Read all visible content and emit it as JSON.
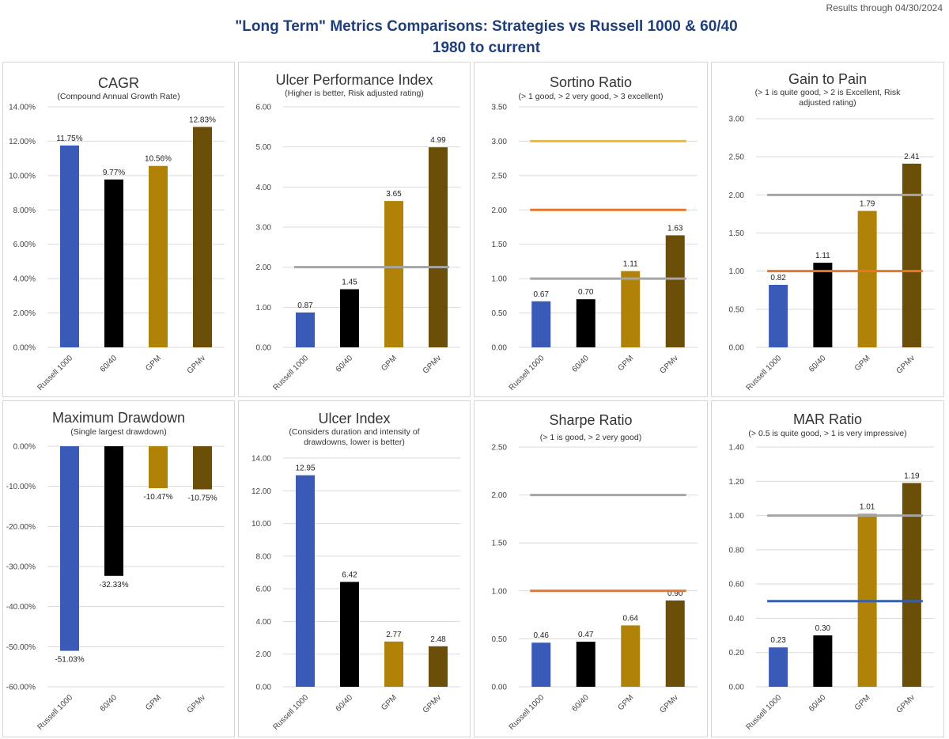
{
  "header": {
    "results_note": "Results through 04/30/2024",
    "title_line1": "\"Long Term\" Metrics Comparisons: Strategies vs Russell 1000 & 60/40",
    "title_line2": "1980 to current"
  },
  "colors": {
    "title": "#1f3e7c",
    "russell": "#3a5ab8",
    "sixty_forty": "#000000",
    "gpm": "#b08308",
    "gpmv": "#6b4e07",
    "grid": "#d9d9d9",
    "ref_gray": "#a5a5a5",
    "ref_orange": "#e4772b",
    "ref_yellow": "#f3b923",
    "ref_blue": "#3660a8"
  },
  "chart_data": [
    {
      "id": "cagr",
      "type": "bar",
      "title": "CAGR",
      "subtitle": [
        "(Compound Annual Growth Rate)"
      ],
      "categories": [
        "Russell 1000",
        "60/40",
        "GPM",
        "GPMv"
      ],
      "values": [
        11.75,
        9.77,
        10.56,
        12.83
      ],
      "data_labels": [
        "11.75%",
        "9.77%",
        "10.56%",
        "12.83%"
      ],
      "ylim": [
        0,
        14
      ],
      "ystep": 2,
      "ytick_labels": [
        "0.00%",
        "2.00%",
        "4.00%",
        "6.00%",
        "8.00%",
        "10.00%",
        "12.00%",
        "14.00%"
      ],
      "reference_lines": []
    },
    {
      "id": "upi",
      "type": "bar",
      "title": "Ulcer Performance Index",
      "subtitle": [
        "(Higher is better, Risk adjusted rating)"
      ],
      "categories": [
        "Russell 1000",
        "60/40",
        "GPM",
        "GPMv"
      ],
      "values": [
        0.87,
        1.45,
        3.65,
        4.99
      ],
      "data_labels": [
        "0.87",
        "1.45",
        "3.65",
        "4.99"
      ],
      "ylim": [
        0,
        6
      ],
      "ystep": 1,
      "ytick_labels": [
        "0.00",
        "1.00",
        "2.00",
        "3.00",
        "4.00",
        "5.00",
        "6.00"
      ],
      "reference_lines": [
        {
          "value": 2.0,
          "color": "gray"
        }
      ]
    },
    {
      "id": "sortino",
      "type": "bar",
      "title": "Sortino Ratio",
      "subtitle": [
        "(> 1 good, > 2 very good, > 3 excellent)"
      ],
      "categories": [
        "Russell 1000",
        "60/40",
        "GPM",
        "GPMv"
      ],
      "values": [
        0.67,
        0.7,
        1.11,
        1.63
      ],
      "data_labels": [
        "0.67",
        "0.70",
        "1.11",
        "1.63"
      ],
      "ylim": [
        0,
        3.5
      ],
      "ystep": 0.5,
      "ytick_labels": [
        "0.00",
        "0.50",
        "1.00",
        "1.50",
        "2.00",
        "2.50",
        "3.00",
        "3.50"
      ],
      "reference_lines": [
        {
          "value": 1.0,
          "color": "gray"
        },
        {
          "value": 2.0,
          "color": "orange"
        },
        {
          "value": 3.0,
          "color": "yellow"
        }
      ]
    },
    {
      "id": "gain_to_pain",
      "type": "bar",
      "title": "Gain to Pain",
      "subtitle": [
        "(> 1 is quite good, > 2 is Excellent, Risk",
        "adjusted rating)"
      ],
      "categories": [
        "Russell 1000",
        "60/40",
        "GPM",
        "GPMv"
      ],
      "values": [
        0.82,
        1.11,
        1.79,
        2.41
      ],
      "data_labels": [
        "0.82",
        "1.11",
        "1.79",
        "2.41"
      ],
      "ylim": [
        0,
        3
      ],
      "ystep": 0.5,
      "ytick_labels": [
        "0.00",
        "0.50",
        "1.00",
        "1.50",
        "2.00",
        "2.50",
        "3.00"
      ],
      "reference_lines": [
        {
          "value": 1.0,
          "color": "orange"
        },
        {
          "value": 2.0,
          "color": "gray"
        }
      ]
    },
    {
      "id": "max_drawdown",
      "type": "bar",
      "title": "Maximum Drawdown",
      "subtitle": [
        "(Single largest drawdown)"
      ],
      "categories": [
        "Russell 1000",
        "60/40",
        "GPM",
        "GPMv"
      ],
      "values": [
        -51.03,
        -32.33,
        -10.47,
        -10.75
      ],
      "data_labels": [
        "-51.03%",
        "-32.33%",
        "-10.47%",
        "-10.75%"
      ],
      "ylim": [
        -60,
        0
      ],
      "ystep": 10,
      "ytick_labels": [
        "-60.00%",
        "-50.00%",
        "-40.00%",
        "-30.00%",
        "-20.00%",
        "-10.00%",
        "0.00%"
      ],
      "reference_lines": []
    },
    {
      "id": "ulcer_index",
      "type": "bar",
      "title": "Ulcer Index",
      "subtitle": [
        "(Considers duration and intensity of",
        "drawdowns, lower is better)"
      ],
      "categories": [
        "Russell 1000",
        "60/40",
        "GPM",
        "GPMv"
      ],
      "values": [
        12.95,
        6.42,
        2.77,
        2.48
      ],
      "data_labels": [
        "12.95",
        "6.42",
        "2.77",
        "2.48"
      ],
      "ylim": [
        0,
        14
      ],
      "ystep": 2,
      "ytick_labels": [
        "0.00",
        "2.00",
        "4.00",
        "6.00",
        "8.00",
        "10.00",
        "12.00",
        "14.00"
      ],
      "reference_lines": []
    },
    {
      "id": "sharpe",
      "type": "bar",
      "title": "Sharpe Ratio",
      "subtitle": [
        "(> 1 is good, > 2 very good)"
      ],
      "categories": [
        "Russell 1000",
        "60/40",
        "GPM",
        "GPMv"
      ],
      "values": [
        0.46,
        0.47,
        0.64,
        0.9
      ],
      "data_labels": [
        "0.46",
        "0.47",
        "0.64",
        "0.90"
      ],
      "ylim": [
        0,
        2.5
      ],
      "ystep": 0.5,
      "ytick_labels": [
        "0.00",
        "0.50",
        "1.00",
        "1.50",
        "2.00",
        "2.50"
      ],
      "reference_lines": [
        {
          "value": 1.0,
          "color": "orange"
        },
        {
          "value": 2.0,
          "color": "gray"
        }
      ]
    },
    {
      "id": "mar",
      "type": "bar",
      "title": "MAR Ratio",
      "subtitle": [
        "(> 0.5 is quite good, > 1 is very impressive)"
      ],
      "categories": [
        "Russell 1000",
        "60/40",
        "GPM",
        "GPMv"
      ],
      "values": [
        0.23,
        0.3,
        1.01,
        1.19
      ],
      "data_labels": [
        "0.23",
        "0.30",
        "1.01",
        "1.19"
      ],
      "ylim": [
        0,
        1.4
      ],
      "ystep": 0.2,
      "ytick_labels": [
        "0.00",
        "0.20",
        "0.40",
        "0.60",
        "0.80",
        "1.00",
        "1.20",
        "1.40"
      ],
      "reference_lines": [
        {
          "value": 0.5,
          "color": "blue"
        },
        {
          "value": 1.0,
          "color": "gray"
        }
      ]
    }
  ]
}
